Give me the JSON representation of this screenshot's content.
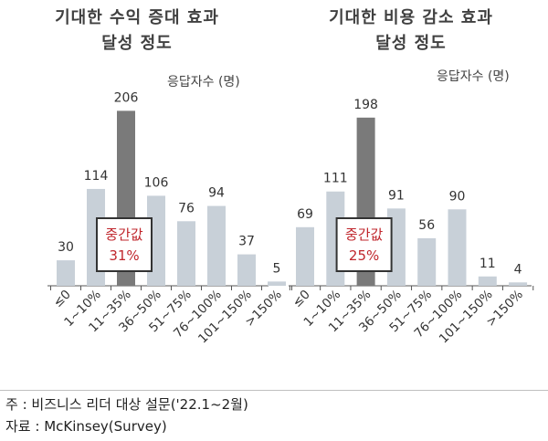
{
  "chart_data": [
    {
      "type": "bar",
      "title_lines": [
        "기대한 수익 증대 효과",
        "달성 정도"
      ],
      "unit_label": "응답자수 (명)",
      "categories": [
        "≤0",
        "1~10%",
        "11~35%",
        "36~50%",
        "51~75%",
        "76~100%",
        "101~150%",
        ">150%"
      ],
      "values": [
        30,
        114,
        206,
        106,
        76,
        94,
        37,
        5
      ],
      "median_index": 2,
      "median_label": "중간값",
      "median_value": "31%",
      "ylim": [
        0,
        215
      ]
    },
    {
      "type": "bar",
      "title_lines": [
        "기대한 비용 감소 효과",
        "달성 정도"
      ],
      "unit_label": "응답자수 (명)",
      "categories": [
        "≤0",
        "1~10%",
        "11~35%",
        "36~50%",
        "51~75%",
        "76~100%",
        "101~150%",
        ">150%"
      ],
      "values": [
        69,
        111,
        198,
        91,
        56,
        90,
        11,
        4
      ],
      "median_index": 2,
      "median_label": "중간값",
      "median_value": "25%",
      "ylim": [
        0,
        215
      ]
    }
  ],
  "colors": {
    "bar": "#c8d0d8",
    "median_bar": "#7a7a7a",
    "box_border": "#333333",
    "median_text": "#c0272d",
    "axis": "#555555"
  },
  "footnotes": {
    "note": "주 : 비즈니스 리더 대상 설문('22.1~2월)",
    "source": "자료 : McKinsey(Survey)"
  }
}
